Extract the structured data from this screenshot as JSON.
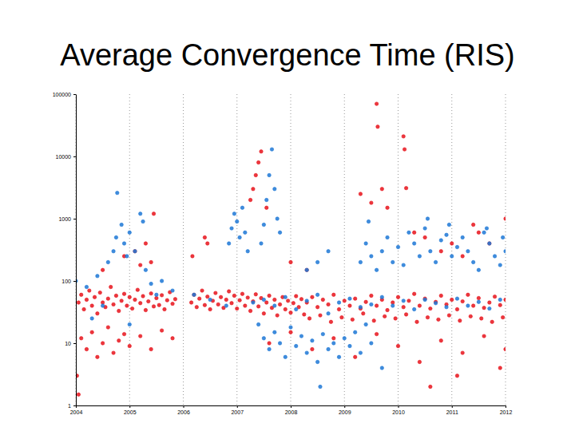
{
  "chart_data": {
    "type": "scatter",
    "title": "Average Convergence Time (RIS)",
    "log": "y",
    "grid": "x",
    "xlim": [
      2004,
      2012
    ],
    "xticks": [
      2004,
      2005,
      2006,
      2007,
      2008,
      2009,
      2010,
      2011,
      2012
    ],
    "ylim": [
      1,
      100000
    ],
    "yticks": [
      1,
      10,
      100,
      1000,
      10000,
      100000
    ],
    "series": [
      {
        "color": "#e8141c",
        "marker": "circle",
        "x": [
          2004.05,
          2004.1,
          2004.15,
          2004.2,
          2004.25,
          2004.3,
          2004.35,
          2004.4,
          2004.45,
          2004.5,
          2004.55,
          2004.6,
          2004.65,
          2004.7,
          2004.75,
          2004.8,
          2004.85,
          2004.9,
          2004.95,
          2005.0,
          2005.05,
          2005.1,
          2005.15,
          2005.2,
          2005.25,
          2005.3,
          2005.35,
          2005.4,
          2005.45,
          2005.5,
          2005.55,
          2005.6,
          2005.65,
          2005.7,
          2005.75,
          2005.8,
          2005.85,
          2006.15,
          2006.2,
          2006.25,
          2006.3,
          2006.35,
          2006.4,
          2006.45,
          2006.5,
          2006.55,
          2006.6,
          2006.65,
          2006.7,
          2006.75,
          2006.8,
          2006.85,
          2006.9,
          2006.95,
          2007.0,
          2007.05,
          2007.1,
          2007.15,
          2007.2,
          2007.25,
          2007.3,
          2007.35,
          2007.4,
          2007.45,
          2007.5,
          2007.55,
          2007.6,
          2007.65,
          2007.7,
          2007.75,
          2007.8,
          2007.85,
          2007.9,
          2007.95,
          2008.0,
          2008.05,
          2008.1,
          2008.15,
          2008.2,
          2008.25,
          2008.3,
          2008.4,
          2008.5,
          2008.6,
          2008.7,
          2008.8,
          2008.9,
          2009.0,
          2009.1,
          2009.2,
          2009.3,
          2009.4,
          2009.5,
          2009.6,
          2009.7,
          2009.8,
          2009.9,
          2010.0,
          2010.1,
          2010.2,
          2010.3,
          2010.4,
          2010.5,
          2010.6,
          2010.7,
          2010.8,
          2010.9,
          2011.0,
          2011.1,
          2011.2,
          2011.3,
          2011.4,
          2011.5,
          2011.6,
          2011.7,
          2011.8,
          2011.9,
          2012.0,
          2008.35,
          2008.55,
          2008.75,
          2008.95,
          2009.15,
          2009.35,
          2009.55,
          2009.75,
          2009.95,
          2010.15,
          2010.35,
          2010.55,
          2010.75,
          2010.95,
          2011.15,
          2011.35,
          2011.55,
          2011.75,
          2011.95,
          2004.1,
          2004.2,
          2004.3,
          2004.4,
          2004.5,
          2004.6,
          2004.7,
          2004.8,
          2004.9,
          2005.0,
          2005.2,
          2005.4,
          2005.6,
          2005.8,
          2004.02,
          2004.05,
          2004.5,
          2004.9,
          2005.1,
          2005.2,
          2005.3,
          2005.4,
          2005.45,
          2006.17,
          2006.4,
          2006.45,
          2007.25,
          2007.3,
          2007.35,
          2007.4,
          2007.45,
          2007.55,
          2008.0,
          2008.3,
          2009.3,
          2009.5,
          2009.6,
          2009.62,
          2009.7,
          2009.8,
          2010.1,
          2010.12,
          2010.15,
          2010.3,
          2010.5,
          2010.8,
          2011.0,
          2011.2,
          2011.4,
          2011.5,
          2011.7,
          2012.0,
          2007.6,
          2008.0,
          2008.4,
          2008.8,
          2009.2,
          2009.6,
          2010.0,
          2010.4,
          2010.8,
          2011.2,
          2011.6,
          2011.9,
          2012.0,
          2010.6,
          2011.1
        ],
        "values": [
          45,
          60,
          35,
          50,
          70,
          40,
          55,
          30,
          65,
          45,
          38,
          52,
          80,
          42,
          58,
          33,
          48,
          62,
          40,
          55,
          36,
          50,
          72,
          44,
          57,
          34,
          47,
          63,
          39,
          53,
          41,
          59,
          35,
          49,
          66,
          43,
          51,
          45,
          60,
          38,
          52,
          70,
          41,
          56,
          35,
          48,
          64,
          42,
          55,
          37,
          50,
          68,
          44,
          58,
          36,
          49,
          62,
          40,
          54,
          33,
          47,
          61,
          39,
          53,
          30,
          45,
          58,
          37,
          50,
          28,
          42,
          55,
          35,
          48,
          31,
          44,
          57,
          38,
          51,
          29,
          45,
          55,
          38,
          50,
          42,
          60,
          35,
          48,
          40,
          52,
          36,
          46,
          58,
          40,
          50,
          34,
          45,
          55,
          38,
          48,
          62,
          40,
          52,
          36,
          46,
          58,
          42,
          50,
          35,
          47,
          60,
          40,
          53,
          37,
          45,
          56,
          41,
          50,
          25,
          28,
          22,
          26,
          24,
          30,
          23,
          27,
          25,
          29,
          22,
          26,
          24,
          28,
          23,
          27,
          25,
          22,
          26,
          12,
          8,
          15,
          6,
          10,
          18,
          7,
          11,
          14,
          9,
          13,
          8,
          16,
          12,
          3,
          1.5,
          150,
          250,
          300,
          180,
          400,
          200,
          1200,
          250,
          500,
          400,
          2000,
          3000,
          5000,
          8000,
          12000,
          1500,
          200,
          150,
          2500,
          1800,
          70000,
          30000,
          3000,
          1500,
          21000,
          13000,
          3100,
          600,
          500,
          300,
          400,
          250,
          800,
          600,
          400,
          1000,
          10,
          15,
          8,
          12,
          6,
          14,
          9,
          5,
          11,
          7,
          13,
          4,
          8,
          2,
          3
        ]
      },
      {
        "color": "#1f78d6",
        "marker": "circle",
        "x": [
          2004.0,
          2004.2,
          2004.3,
          2004.4,
          2004.5,
          2004.6,
          2004.7,
          2004.75,
          2004.77,
          2004.85,
          2004.9,
          2004.95,
          2005.0,
          2005.0,
          2005.1,
          2005.2,
          2005.25,
          2005.3,
          2005.4,
          2005.5,
          2005.6,
          2005.8,
          2006.2,
          2006.5,
          2006.8,
          2006.85,
          2006.9,
          2006.95,
          2007.0,
          2007.05,
          2007.1,
          2007.15,
          2007.2,
          2007.45,
          2007.5,
          2007.55,
          2007.6,
          2007.65,
          2007.7,
          2007.75,
          2007.8,
          2007.4,
          2007.5,
          2007.6,
          2007.7,
          2007.8,
          2007.9,
          2008.0,
          2008.1,
          2008.2,
          2008.3,
          2008.4,
          2008.5,
          2008.6,
          2008.7,
          2008.8,
          2008.9,
          2009.0,
          2009.1,
          2009.2,
          2009.3,
          2009.4,
          2009.5,
          2009.7,
          2008.55,
          2007.3,
          2007.5,
          2007.7,
          2007.9,
          2008.1,
          2008.3,
          2008.5,
          2008.7,
          2008.9,
          2009.1,
          2009.3,
          2009.5,
          2009.7,
          2009.9,
          2010.1,
          2010.3,
          2010.5,
          2010.7,
          2010.9,
          2011.1,
          2011.3,
          2011.5,
          2011.7,
          2011.9,
          2009.3,
          2009.4,
          2009.5,
          2009.6,
          2009.7,
          2009.8,
          2009.9,
          2010.0,
          2010.1,
          2010.2,
          2010.3,
          2010.4,
          2010.5,
          2010.6,
          2010.7,
          2010.8,
          2010.9,
          2011.0,
          2011.1,
          2011.2,
          2011.3,
          2011.4,
          2011.5,
          2011.6,
          2011.7,
          2011.8,
          2011.9,
          2012.0,
          2009.45,
          2010.55,
          2010.95,
          2011.65,
          2011.95,
          2008.5,
          2008.7,
          2008.3
        ],
        "values": [
          100,
          80,
          25,
          120,
          40,
          200,
          300,
          500,
          2600,
          800,
          400,
          250,
          600,
          20,
          300,
          1200,
          900,
          150,
          90,
          60,
          100,
          70,
          60,
          50,
          40,
          400,
          700,
          1200,
          900,
          500,
          1500,
          600,
          300,
          400,
          800,
          2000,
          5000,
          13000,
          3000,
          1000,
          600,
          20,
          12,
          8,
          15,
          10,
          6,
          18,
          9,
          13,
          7,
          11,
          5,
          14,
          8,
          10,
          6,
          12,
          9,
          15,
          7,
          20,
          10,
          4,
          2,
          45,
          50,
          40,
          55,
          35,
          48,
          60,
          30,
          45,
          52,
          38,
          42,
          55,
          40,
          48,
          35,
          50,
          44,
          38,
          52,
          40,
          46,
          36,
          50,
          200,
          400,
          250,
          150,
          300,
          500,
          200,
          350,
          180,
          600,
          400,
          250,
          700,
          300,
          200,
          450,
          550,
          250,
          350,
          500,
          300,
          200,
          150,
          600,
          400,
          250,
          180,
          300,
          900,
          1000,
          800,
          700,
          500,
          200,
          300,
          150
        ]
      }
    ]
  }
}
